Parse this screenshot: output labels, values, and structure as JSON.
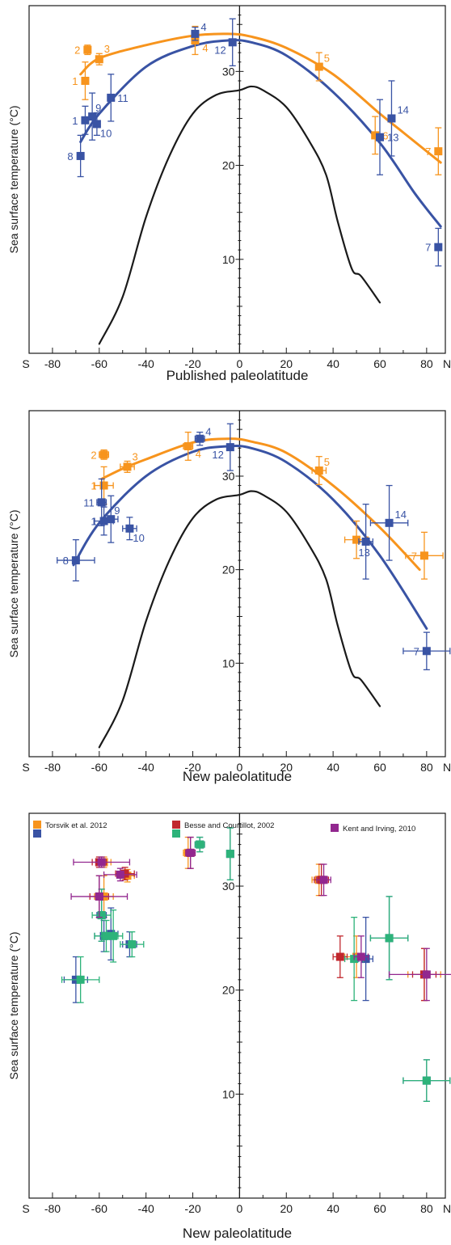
{
  "colors": {
    "orange": "#F7941D",
    "blue": "#3953A4",
    "red": "#C1272D",
    "green": "#2DB37A",
    "purple": "#92278F",
    "axis": "#1a1a1a"
  },
  "chart_data": [
    {
      "type": "scatter",
      "xlabel": "Published paleolatitude",
      "ylabel": "Sea surface temperature (°C)",
      "xlim": [
        -90,
        88
      ],
      "ylim": [
        0,
        37
      ],
      "x_ticks": [
        "S",
        "-80",
        "-60",
        "-40",
        "-20",
        "0",
        "20",
        "40",
        "60",
        "80",
        "N"
      ],
      "y_ticks": [
        "10",
        "20",
        "30"
      ],
      "series": [
        {
          "color": "orange",
          "points": [
            {
              "label": "1",
              "x": -66,
              "y": 29.0,
              "err_y": 2.0
            },
            {
              "label": "2",
              "x": -65,
              "y": 32.3,
              "err_y": 0.5
            },
            {
              "label": "3",
              "x": -60,
              "y": 31.3,
              "err_y": 0.6
            },
            {
              "label": "4",
              "x": -19,
              "y": 33.3,
              "err_y": 1.5
            },
            {
              "label": "5",
              "x": 34,
              "y": 30.5,
              "err_y": 1.5
            },
            {
              "label": "6",
              "x": 58,
              "y": 23.2,
              "err_y": 2.0
            },
            {
              "label": "7",
              "x": 85,
              "y": 21.5,
              "err_y": 2.5
            }
          ],
          "curve": [
            [
              -68,
              29.7
            ],
            [
              -60,
              31.4
            ],
            [
              -40,
              32.8
            ],
            [
              -20,
              33.8
            ],
            [
              -5,
              34.0
            ],
            [
              5,
              33.7
            ],
            [
              20,
              32.5
            ],
            [
              40,
              29.7
            ],
            [
              60,
              25.5
            ],
            [
              70,
              23.5
            ],
            [
              86,
              20.3
            ]
          ]
        },
        {
          "color": "blue",
          "points": [
            {
              "label": "1",
              "x": -66,
              "y": 24.8,
              "err_y": 1.5
            },
            {
              "label": "8",
              "x": -68,
              "y": 21.0,
              "err_y": 2.2
            },
            {
              "label": "9",
              "x": -63,
              "y": 25.2,
              "err_y": 2.5
            },
            {
              "label": "10",
              "x": -61,
              "y": 24.4,
              "err_y": 1.2
            },
            {
              "label": "11",
              "x": -55,
              "y": 27.2,
              "err_y": 2.5
            },
            {
              "label": "4",
              "x": -19,
              "y": 34.0,
              "err_y": 0.7
            },
            {
              "label": "12",
              "x": -3,
              "y": 33.1,
              "err_y": 2.5
            },
            {
              "label": "13",
              "x": 60,
              "y": 23.0,
              "err_y": 4.0
            },
            {
              "label": "14",
              "x": 65,
              "y": 25.0,
              "err_y": 4.0
            },
            {
              "label": "7",
              "x": 85,
              "y": 11.3,
              "err_y": 2.0
            }
          ],
          "curve": [
            [
              -68,
              22.5
            ],
            [
              -60,
              25.5
            ],
            [
              -40,
              30.5
            ],
            [
              -20,
              32.7
            ],
            [
              -5,
              33.3
            ],
            [
              5,
              33.1
            ],
            [
              20,
              31.7
            ],
            [
              40,
              27.8
            ],
            [
              60,
              22.4
            ],
            [
              75,
              17.0
            ],
            [
              86,
              13.5
            ]
          ]
        },
        {
          "color": "axis",
          "curve": [
            [
              -60,
              1.0
            ],
            [
              -50,
              6.0
            ],
            [
              -40,
              14.5
            ],
            [
              -30,
              21.0
            ],
            [
              -20,
              25.5
            ],
            [
              -10,
              27.5
            ],
            [
              0,
              28.0
            ],
            [
              5,
              28.4
            ],
            [
              10,
              28.0
            ],
            [
              20,
              26.2
            ],
            [
              30,
              22.5
            ],
            [
              37,
              19.0
            ],
            [
              42,
              14.0
            ],
            [
              48,
              9.0
            ],
            [
              52,
              8.2
            ],
            [
              60,
              5.4
            ]
          ]
        }
      ]
    },
    {
      "type": "scatter",
      "xlabel": "New paleolatitude",
      "ylabel": "Sea surface temperature (°C)",
      "xlim": [
        -90,
        88
      ],
      "ylim": [
        0,
        37
      ],
      "x_ticks": [
        "S",
        "-80",
        "-60",
        "-40",
        "-20",
        "0",
        "20",
        "40",
        "60",
        "80",
        "N"
      ],
      "y_ticks": [
        "10",
        "20",
        "30"
      ],
      "series": [
        {
          "color": "orange",
          "points": [
            {
              "label": "1",
              "x": -58,
              "y": 29.0,
              "err_y": 2.0,
              "err_x": 4
            },
            {
              "label": "2",
              "x": -58,
              "y": 32.3,
              "err_y": 0.5,
              "err_x": 2
            },
            {
              "label": "3",
              "x": -48,
              "y": 31.0,
              "err_y": 0.6,
              "err_x": 3
            },
            {
              "label": "4",
              "x": -22,
              "y": 33.2,
              "err_y": 1.5,
              "err_x": 2
            },
            {
              "label": "5",
              "x": 34,
              "y": 30.6,
              "err_y": 1.5,
              "err_x": 3
            },
            {
              "label": "6",
              "x": 50,
              "y": 23.2,
              "err_y": 2.0,
              "err_x": 5
            },
            {
              "label": "7",
              "x": 79,
              "y": 21.5,
              "err_y": 2.5,
              "err_x": 8
            }
          ],
          "curve": [
            [
              -59,
              29.7
            ],
            [
              -50,
              30.8
            ],
            [
              -40,
              31.8
            ],
            [
              -20,
              33.6
            ],
            [
              -5,
              34.0
            ],
            [
              5,
              33.7
            ],
            [
              20,
              32.5
            ],
            [
              40,
              29.0
            ],
            [
              60,
              24.5
            ],
            [
              77,
              20.0
            ]
          ]
        },
        {
          "color": "blue",
          "points": [
            {
              "label": "8",
              "x": -70,
              "y": 21.0,
              "err_y": 2.2,
              "err_x": 8
            },
            {
              "label": "1",
              "x": -58,
              "y": 25.2,
              "err_y": 1.5,
              "err_x": 4
            },
            {
              "label": "9",
              "x": -55,
              "y": 25.4,
              "err_y": 2.5,
              "err_x": 3
            },
            {
              "label": "10",
              "x": -47,
              "y": 24.4,
              "err_y": 1.2,
              "err_x": 3
            },
            {
              "label": "11",
              "x": -59,
              "y": 27.2,
              "err_y": 2.5,
              "err_x": 2
            },
            {
              "label": "4",
              "x": -17,
              "y": 34.0,
              "err_y": 0.7,
              "err_x": 2
            },
            {
              "label": "12",
              "x": -4,
              "y": 33.1,
              "err_y": 2.5,
              "err_x": 0
            },
            {
              "label": "13",
              "x": 54,
              "y": 23.0,
              "err_y": 4.0,
              "err_x": 3
            },
            {
              "label": "14",
              "x": 64,
              "y": 25.0,
              "err_y": 4.0,
              "err_x": 8
            },
            {
              "label": "7",
              "x": 80,
              "y": 11.3,
              "err_y": 2.0,
              "err_x": 10
            }
          ],
          "curve": [
            [
              -71,
              20.5
            ],
            [
              -60,
              25.0
            ],
            [
              -40,
              30.0
            ],
            [
              -20,
              32.6
            ],
            [
              -5,
              33.2
            ],
            [
              5,
              33.0
            ],
            [
              20,
              31.5
            ],
            [
              40,
              27.5
            ],
            [
              60,
              21.5
            ],
            [
              80,
              13.7
            ]
          ]
        },
        {
          "color": "axis",
          "curve": [
            [
              -60,
              1.0
            ],
            [
              -50,
              6.0
            ],
            [
              -40,
              14.5
            ],
            [
              -30,
              21.0
            ],
            [
              -20,
              25.5
            ],
            [
              -10,
              27.5
            ],
            [
              0,
              28.0
            ],
            [
              5,
              28.4
            ],
            [
              10,
              28.0
            ],
            [
              20,
              26.2
            ],
            [
              30,
              22.5
            ],
            [
              37,
              19.0
            ],
            [
              42,
              14.0
            ],
            [
              48,
              9.0
            ],
            [
              52,
              8.2
            ],
            [
              60,
              5.4
            ]
          ]
        }
      ]
    },
    {
      "type": "scatter",
      "xlabel": "New paleolatitude",
      "ylabel": "Sea surface temperature (°C)",
      "xlim": [
        -90,
        88
      ],
      "ylim": [
        0,
        37
      ],
      "x_ticks": [
        "S",
        "-80",
        "-60",
        "-40",
        "-20",
        "0",
        "20",
        "40",
        "60",
        "80",
        "N"
      ],
      "y_ticks": [
        "10",
        "20",
        "30"
      ],
      "legend": [
        {
          "text": "Torsvik et al. 2012",
          "colors": [
            "orange",
            "blue"
          ]
        },
        {
          "text": "Besse and Courtillot, 2002",
          "colors": [
            "red",
            "green"
          ]
        },
        {
          "text": "Kent and Irving, 2010",
          "colors": [
            "purple"
          ]
        }
      ],
      "series": [
        {
          "color": "orange",
          "points": [
            {
              "x": -58,
              "y": 29.0,
              "err_y": 2.0,
              "err_x": 4
            },
            {
              "x": -58,
              "y": 32.3,
              "err_y": 0.5,
              "err_x": 3
            },
            {
              "x": -48,
              "y": 31.0,
              "err_y": 0.6,
              "err_x": 3
            },
            {
              "x": -22,
              "y": 33.2,
              "err_y": 1.5,
              "err_x": 2
            },
            {
              "x": 34,
              "y": 30.6,
              "err_y": 1.5,
              "err_x": 3
            },
            {
              "x": 50,
              "y": 23.2,
              "err_y": 2.0,
              "err_x": 5
            },
            {
              "x": 79,
              "y": 21.5,
              "err_y": 2.5,
              "err_x": 7
            }
          ]
        },
        {
          "color": "blue",
          "points": [
            {
              "x": -70,
              "y": 21.0,
              "err_y": 2.2,
              "err_x": 5
            },
            {
              "x": -58,
              "y": 25.2,
              "err_y": 1.5,
              "err_x": 4
            },
            {
              "x": -55,
              "y": 25.4,
              "err_y": 2.5,
              "err_x": 3
            },
            {
              "x": -47,
              "y": 24.4,
              "err_y": 1.2,
              "err_x": 3
            },
            {
              "x": -59,
              "y": 27.2,
              "err_y": 2.5,
              "err_x": 2
            },
            {
              "x": -17,
              "y": 34.0,
              "err_y": 0.7,
              "err_x": 2
            },
            {
              "x": -4,
              "y": 33.1,
              "err_y": 2.5,
              "err_x": 0
            },
            {
              "x": 54,
              "y": 23.0,
              "err_y": 4.0,
              "err_x": 3
            },
            {
              "x": 64,
              "y": 25.0,
              "err_y": 4.0,
              "err_x": 8
            },
            {
              "x": 80,
              "y": 11.3,
              "err_y": 2.0,
              "err_x": 10
            }
          ]
        },
        {
          "color": "red",
          "points": [
            {
              "x": -60,
              "y": 29.0,
              "err_y": 2.0,
              "err_x": 4
            },
            {
              "x": -60,
              "y": 32.3,
              "err_y": 0.5,
              "err_x": 3
            },
            {
              "x": -49,
              "y": 31.2,
              "err_y": 0.6,
              "err_x": 4
            },
            {
              "x": -21,
              "y": 33.2,
              "err_y": 1.5,
              "err_x": 2
            },
            {
              "x": 35,
              "y": 30.6,
              "err_y": 1.5,
              "err_x": 3
            },
            {
              "x": 43,
              "y": 23.2,
              "err_y": 2.0,
              "err_x": 3
            },
            {
              "x": 79,
              "y": 21.5,
              "err_y": 2.5,
              "err_x": 5
            }
          ]
        },
        {
          "color": "green",
          "points": [
            {
              "x": -68,
              "y": 21.0,
              "err_y": 2.2,
              "err_x": 8
            },
            {
              "x": -59,
              "y": 27.2,
              "err_y": 2.5,
              "err_x": 4
            },
            {
              "x": -57,
              "y": 25.2,
              "err_y": 1.5,
              "err_x": 5
            },
            {
              "x": -54,
              "y": 25.2,
              "err_y": 2.5,
              "err_x": 4
            },
            {
              "x": -46,
              "y": 24.4,
              "err_y": 1.2,
              "err_x": 5
            },
            {
              "x": -17,
              "y": 34.0,
              "err_y": 0.7,
              "err_x": 2
            },
            {
              "x": -4,
              "y": 33.1,
              "err_y": 2.5,
              "err_x": 0
            },
            {
              "x": 49,
              "y": 23.0,
              "err_y": 4.0,
              "err_x": 4
            },
            {
              "x": 64,
              "y": 25.0,
              "err_y": 4.0,
              "err_x": 8
            },
            {
              "x": 80,
              "y": 11.3,
              "err_y": 2.0,
              "err_x": 10
            }
          ]
        },
        {
          "color": "purple",
          "points": [
            {
              "x": -59,
              "y": 32.3,
              "err_y": 0.5,
              "err_x": 12
            },
            {
              "x": -51,
              "y": 31.1,
              "err_y": 0.6,
              "err_x": 7
            },
            {
              "x": -60,
              "y": 29.0,
              "err_y": 2.0,
              "err_x": 12
            },
            {
              "x": -21,
              "y": 33.2,
              "err_y": 1.5,
              "err_x": 2
            },
            {
              "x": 36,
              "y": 30.6,
              "err_y": 1.5,
              "err_x": 3
            },
            {
              "x": 52,
              "y": 23.2,
              "err_y": 2.0,
              "err_x": 3
            },
            {
              "x": 80,
              "y": 21.5,
              "err_y": 2.5,
              "err_x": 16
            }
          ]
        }
      ]
    }
  ]
}
